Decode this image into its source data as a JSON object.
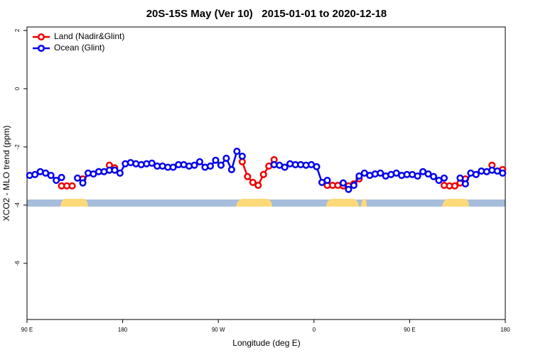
{
  "chart_data": {
    "type": "line",
    "title": "20S-15S May (Ver 10)   2015-01-01 to 2020-12-18",
    "x_label": "Longitude (deg E)",
    "y_label": "XCO2 - MLO trend (ppm)",
    "xlim": [
      90,
      540
    ],
    "ylim": [
      -7.93,
      2.12
    ],
    "xticks": [
      {
        "value": 90,
        "label": "90 E"
      },
      {
        "value": 180,
        "label": "180"
      },
      {
        "value": 270,
        "label": "90 W"
      },
      {
        "value": 360,
        "label": "0"
      },
      {
        "value": 450,
        "label": "90 E"
      },
      {
        "value": 540,
        "label": "180"
      }
    ],
    "yticks": [
      2,
      0,
      -2,
      -4,
      -6
    ],
    "grid": false,
    "legend": "topleft",
    "x": [
      92.5,
      97.5,
      102.5,
      107.5,
      112.5,
      117.5,
      122.5,
      127.5,
      132.5,
      137.5,
      142.5,
      147.5,
      152.5,
      157.5,
      162.5,
      167.5,
      172.5,
      177.5,
      182.5,
      187.5,
      192.5,
      197.5,
      202.5,
      207.5,
      212.5,
      217.5,
      222.5,
      227.5,
      232.5,
      237.5,
      242.5,
      247.5,
      252.5,
      257.5,
      262.5,
      267.5,
      272.5,
      277.5,
      282.5,
      287.5,
      292.5,
      297.5,
      302.5,
      307.5,
      312.5,
      317.5,
      322.5,
      327.5,
      332.5,
      337.5,
      342.5,
      347.5,
      352.5,
      357.5,
      362.5,
      367.5,
      372.5,
      377.5,
      382.5,
      387.5,
      392.5,
      397.5,
      402.5,
      407.5,
      412.5,
      417.5,
      422.5,
      427.5,
      432.5,
      437.5,
      442.5,
      447.5,
      452.5,
      457.5,
      462.5,
      467.5,
      472.5,
      477.5,
      482.5,
      487.5,
      492.5,
      497.5,
      502.5,
      507.5,
      512.5,
      517.5,
      522.5,
      527.5,
      532.5,
      537.5
    ],
    "series": [
      {
        "name": "Land (Nadir&Glint)",
        "color": "#ee0000",
        "values": [
          null,
          null,
          null,
          null,
          null,
          null,
          -3.34,
          -3.34,
          -3.34,
          null,
          -3.1,
          null,
          null,
          null,
          null,
          -2.63,
          -2.72,
          null,
          null,
          null,
          null,
          null,
          null,
          null,
          null,
          null,
          null,
          null,
          null,
          null,
          null,
          null,
          null,
          null,
          null,
          null,
          null,
          null,
          null,
          null,
          -2.51,
          -3.02,
          -3.22,
          -3.32,
          -2.95,
          -2.66,
          -2.44,
          null,
          null,
          null,
          null,
          null,
          null,
          null,
          null,
          null,
          -3.32,
          -3.32,
          -3.32,
          -3.34,
          -3.34,
          -3.27,
          -3.1,
          null,
          null,
          null,
          null,
          null,
          null,
          null,
          null,
          null,
          null,
          null,
          null,
          null,
          null,
          null,
          -3.32,
          -3.34,
          -3.34,
          -3.24,
          -3.1,
          null,
          null,
          null,
          null,
          -2.63,
          null,
          -2.78
        ]
      },
      {
        "name": "Ocean (Glint)",
        "color": "#0000ee",
        "values": [
          -2.98,
          -2.95,
          -2.85,
          -2.9,
          -2.98,
          -3.15,
          -3.05,
          null,
          null,
          -3.07,
          -3.24,
          -2.9,
          -2.93,
          -2.85,
          -2.85,
          -2.8,
          -2.8,
          -2.9,
          -2.58,
          -2.54,
          -2.58,
          -2.61,
          -2.58,
          -2.56,
          -2.66,
          -2.66,
          -2.7,
          -2.7,
          -2.61,
          -2.61,
          -2.66,
          -2.63,
          -2.51,
          -2.7,
          -2.66,
          -2.46,
          -2.63,
          -2.39,
          -2.78,
          -2.15,
          -2.32,
          null,
          null,
          null,
          null,
          null,
          -2.61,
          -2.63,
          -2.7,
          -2.58,
          -2.61,
          -2.61,
          -2.63,
          -2.61,
          -2.68,
          -3.22,
          -3.15,
          null,
          null,
          -3.24,
          -3.46,
          -3.32,
          -3.0,
          -2.9,
          -2.98,
          -2.93,
          -2.9,
          -3.0,
          -2.95,
          -2.9,
          -2.98,
          -2.95,
          -2.95,
          -3.0,
          -2.85,
          -2.93,
          -3.02,
          -3.15,
          -3.07,
          null,
          null,
          -3.07,
          -3.27,
          -2.9,
          -2.95,
          -2.83,
          -2.85,
          -2.8,
          -2.83,
          -2.9
        ]
      }
    ]
  }
}
